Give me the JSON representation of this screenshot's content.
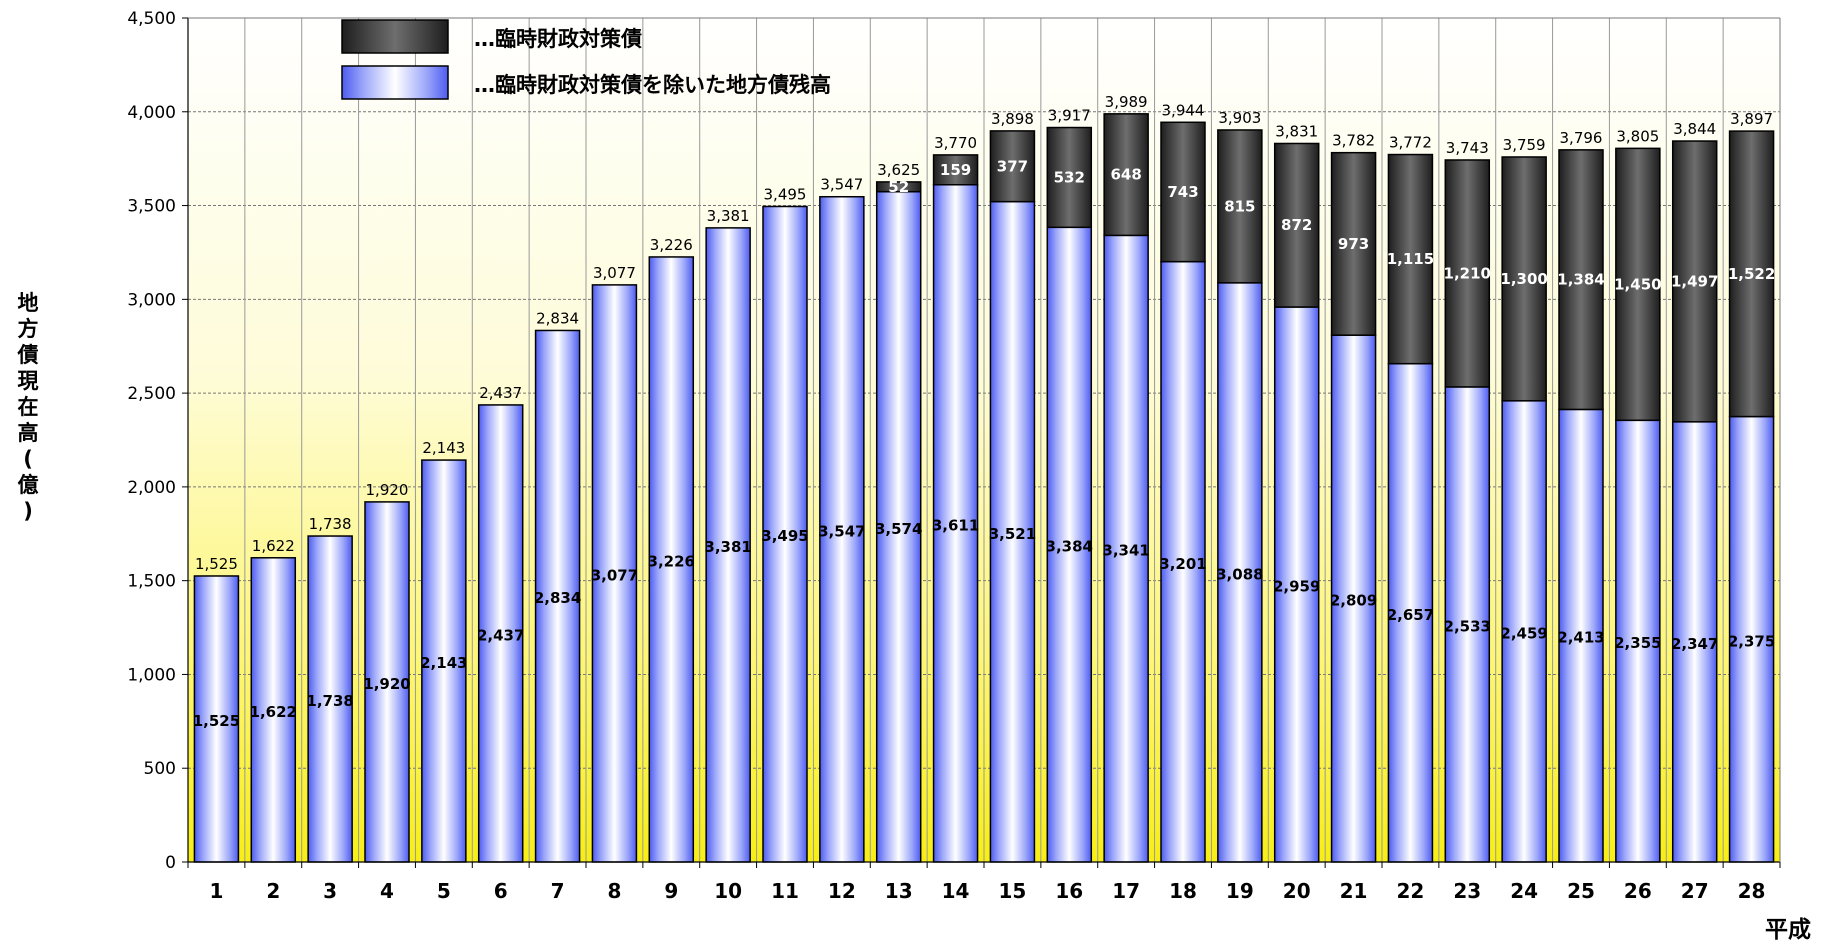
{
  "chart_data": {
    "type": "bar",
    "stacked": true,
    "ylabel_chars": [
      "地",
      "方",
      "債",
      "現",
      "在",
      "高",
      "(",
      "億",
      ")"
    ],
    "xunit": "平成",
    "ylim": [
      0,
      4500
    ],
    "yticks": [
      "0",
      "500",
      "1,000",
      "1,500",
      "2,000",
      "2,500",
      "3,000",
      "3,500",
      "4,000",
      "4,500"
    ],
    "categories": [
      "1",
      "2",
      "3",
      "4",
      "5",
      "6",
      "7",
      "8",
      "9",
      "10",
      "11",
      "12",
      "13",
      "14",
      "15",
      "16",
      "17",
      "18",
      "19",
      "20",
      "21",
      "22",
      "23",
      "24",
      "25",
      "26",
      "27",
      "28"
    ],
    "series": [
      {
        "name": "…臨時財政対策債を除いた地方債残高",
        "color": "#5a6cf0",
        "values": [
          1525,
          1622,
          1738,
          1920,
          2143,
          2437,
          2834,
          3077,
          3226,
          3381,
          3495,
          3547,
          3574,
          3611,
          3521,
          3384,
          3341,
          3201,
          3088,
          2959,
          2809,
          2657,
          2533,
          2459,
          2413,
          2355,
          2347,
          2375
        ],
        "labels": [
          "1,525",
          "1,622",
          "1,738",
          "1,920",
          "2,143",
          "2,437",
          "2,834",
          "3,077",
          "3,226",
          "3,381",
          "3,495",
          "3,547",
          "3,574",
          "3,611",
          "3,521",
          "3,384",
          "3,341",
          "3,201",
          "3,088",
          "2,959",
          "2,809",
          "2,657",
          "2,533",
          "2,459",
          "2,413",
          "2,355",
          "2,347",
          "2,375"
        ]
      },
      {
        "name": "…臨時財政対策債",
        "color": "#333333",
        "values": [
          0,
          0,
          0,
          0,
          0,
          0,
          0,
          0,
          0,
          0,
          0,
          0,
          52,
          159,
          377,
          532,
          648,
          743,
          815,
          872,
          973,
          1115,
          1210,
          1300,
          1384,
          1450,
          1497,
          1522
        ],
        "labels": [
          "",
          "",
          "",
          "",
          "",
          "",
          "",
          "",
          "",
          "",
          "",
          "",
          "52",
          "159",
          "377",
          "532",
          "648",
          "743",
          "815",
          "872",
          "973",
          "1,115",
          "1,210",
          "1,300",
          "1,384",
          "1,450",
          "1,497",
          "1,522"
        ]
      }
    ],
    "totals": [
      1525,
      1622,
      1738,
      1920,
      2143,
      2437,
      2834,
      3077,
      3226,
      3381,
      3495,
      3547,
      3625,
      3770,
      3898,
      3917,
      3989,
      3944,
      3903,
      3831,
      3782,
      3772,
      3743,
      3759,
      3796,
      3805,
      3844,
      3897
    ],
    "total_labels": [
      "1,525",
      "1,622",
      "1,738",
      "1,920",
      "2,143",
      "2,437",
      "2,834",
      "3,077",
      "3,226",
      "3,381",
      "3,495",
      "3,547",
      "3,625",
      "3,770",
      "3,898",
      "3,917",
      "3,989",
      "3,944",
      "3,903",
      "3,831",
      "3,782",
      "3,772",
      "3,743",
      "3,759",
      "3,796",
      "3,805",
      "3,844",
      "3,897"
    ],
    "legend_position": "top-left",
    "grid": true,
    "background": "gradient-white-to-yellow"
  }
}
